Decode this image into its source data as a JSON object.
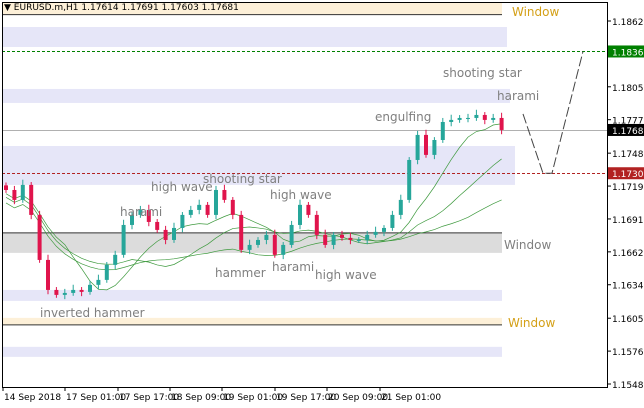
{
  "header": {
    "symbol": "EURUSD.m,H1",
    "ohlc": "1.17614 1.17691 1.17603 1.17681"
  },
  "colors": {
    "bull": "#26a69a",
    "bear": "#e0144c",
    "zone": "#e6e6f8",
    "window_tan": "#fdf0d8",
    "window_gray": "#dcdcdc",
    "ma": "#3f9a3f",
    "label": "#7f7f7f",
    "window_label": "#d4a017",
    "resistance": "#008000",
    "support": "#b22222",
    "current": "#000000"
  },
  "chart_data": {
    "type": "candlestick",
    "symbol": "EURUSD.m",
    "timeframe": "H1",
    "ylim": [
      1.1548,
      1.18625
    ],
    "y_ticks": [
      "1.18625",
      "1.18055",
      "1.17770",
      "1.17480",
      "1.17195",
      "1.16910",
      "1.16625",
      "1.16340",
      "1.16050",
      "1.15765",
      "1.15480"
    ],
    "x_ticks": [
      "14 Sep 2018",
      "17 Sep 01:00",
      "17 Sep 17:00",
      "18 Sep 09:00",
      "19 Sep 01:00",
      "19 Sep 17:00",
      "20 Sep 09:00",
      "21 Sep 01:00"
    ],
    "closes": [
      1.17161,
      1.17075,
      1.17205,
      1.16945,
      1.16555,
      1.16295,
      1.16252,
      1.16269,
      1.16295,
      1.16278,
      1.16339,
      1.16382,
      1.16512,
      1.16599,
      1.16858,
      1.16945,
      1.16988,
      1.16884,
      1.16815,
      1.16728,
      1.16832,
      1.16945,
      1.16988,
      1.17032,
      1.16945,
      1.17161,
      1.17075,
      1.16945,
      1.16642,
      1.16685,
      1.16728,
      1.16772,
      1.16599,
      1.16685,
      1.16858,
      1.17032,
      1.16945,
      1.16772,
      1.16685,
      1.16772,
      1.16746,
      1.16728,
      1.16728,
      1.16772,
      1.16798,
      1.16832,
      1.16945,
      1.17075,
      1.17421,
      1.17638,
      1.17465,
      1.17594,
      1.1775,
      1.17768,
      1.17785,
      1.17785,
      1.17811,
      1.17768,
      1.17785,
      1.17681
    ],
    "price_lines": [
      {
        "price": 1.18361,
        "label": "1.18361",
        "style": "dashed",
        "color": "#008000"
      },
      {
        "price": 1.17306,
        "label": "1.17306",
        "style": "dashed",
        "color": "#b22222"
      },
      {
        "price": 1.17681,
        "label": "1.17681",
        "style": "solid",
        "color": "#000000"
      }
    ],
    "zones": [
      {
        "top": 1.18573,
        "bottom": 1.184
      },
      {
        "top": 1.18036,
        "bottom": 1.17915
      },
      {
        "top": 1.17542,
        "bottom": 1.17205
      },
      {
        "top": 1.16295,
        "bottom": 1.162
      },
      {
        "top": 1.15802,
        "bottom": 1.15715
      }
    ],
    "windows": [
      {
        "top": 1.1879,
        "bottom": 1.1868,
        "kind": "tan",
        "label": "Window"
      },
      {
        "top": 1.16789,
        "bottom": 1.16616,
        "kind": "gray",
        "label": "Window"
      },
      {
        "top": 1.16053,
        "bottom": 1.15992,
        "kind": "tan",
        "label": "Window"
      }
    ],
    "projection": [
      1.1782,
      1.17306,
      1.17306,
      1.18361
    ],
    "annotations": [
      "shooting star",
      "harami",
      "engulfing",
      "high wave",
      "shooting star",
      "high wave",
      "harami",
      "hammer",
      "harami",
      "high wave",
      "inverted hammer"
    ]
  }
}
